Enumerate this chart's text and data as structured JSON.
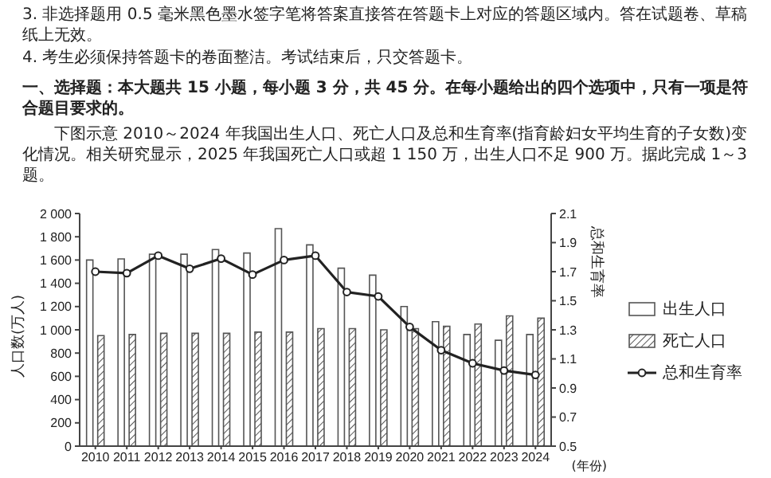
{
  "chart_data": {
    "type": "bar",
    "annotations": [
      "3. 非选择题用 0.5 毫米黑色墨水签字笔将答案直接答在答题卡上对应的答题区域内。答在试题卷、草稿纸上无效。",
      "4. 考生必须保持答题卡的卷面整洁。考试结束后，只交答题卡。",
      "一、选择题：本大题共 15 小题，每小题 3 分，共 45 分。在每小题给出的四个选项中，只有一项是符合题目要求的。",
      "下图示意 2010～2024 年我国出生人口、死亡人口及总和生育率(指育龄妇女平均生育的子女数)变化情况。相关研究显示，2025 年我国死亡人口或超 1 150 万，出生人口不足 900 万。据此完成 1～3 题。"
    ],
    "xlabel": "(年份)",
    "ylabel": "人口数(万人)",
    "y2label": "总和生育率",
    "categories": [
      "2010",
      "2011",
      "2012",
      "2013",
      "2014",
      "2015",
      "2016",
      "2017",
      "2018",
      "2019",
      "2020",
      "2021",
      "2022",
      "2023",
      "2024"
    ],
    "series": [
      {
        "name": "出生人口",
        "color": "#ffffff",
        "values": [
          1600,
          1610,
          1650,
          1650,
          1690,
          1660,
          1870,
          1730,
          1530,
          1470,
          1200,
          1070,
          960,
          910,
          960
        ]
      },
      {
        "name": "死亡人口",
        "color": "#555555",
        "values": [
          950,
          960,
          970,
          970,
          970,
          980,
          980,
          1010,
          1010,
          1000,
          1010,
          1030,
          1050,
          1120,
          1100
        ]
      },
      {
        "name": "总和生育率",
        "type": "line",
        "axis": "y2",
        "color": "#222222",
        "values": [
          1.7,
          1.69,
          1.81,
          1.72,
          1.79,
          1.68,
          1.78,
          1.81,
          1.56,
          1.53,
          1.32,
          1.16,
          1.07,
          1.02,
          0.99
        ]
      }
    ],
    "ylim": [
      0,
      2000
    ],
    "yticks": [
      0,
      200,
      400,
      600,
      800,
      {
        "value": 1000,
        "label": "1 000"
      },
      {
        "value": 1200,
        "label": "1 200"
      },
      {
        "value": 1400,
        "label": "1 400"
      },
      {
        "value": 1600,
        "label": "1 600"
      },
      {
        "value": 1800,
        "label": "1 800"
      },
      {
        "value": 2000,
        "label": "2 000"
      }
    ],
    "y2lim": [
      0.5,
      2.1
    ],
    "y2ticks": [
      0.5,
      0.7,
      0.9,
      1.1,
      1.3,
      1.5,
      1.7,
      1.9,
      2.1
    ],
    "legend": "right",
    "marker": "circle",
    "line_style": "solid"
  }
}
